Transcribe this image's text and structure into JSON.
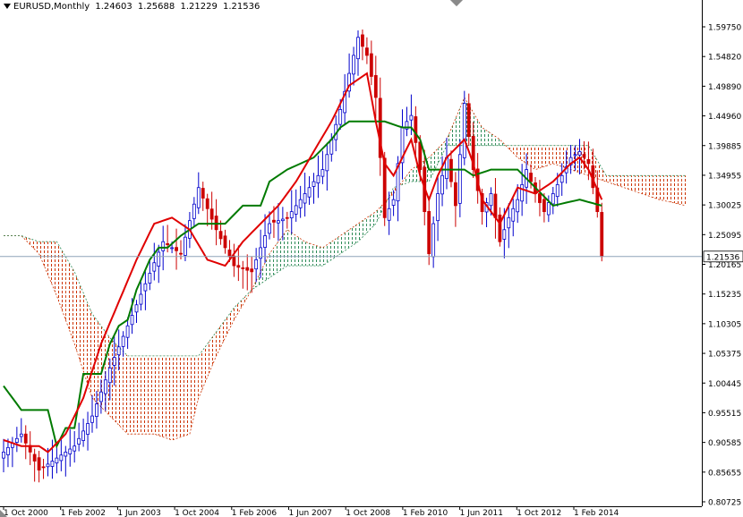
{
  "header": {
    "symbol": "EURUSD,Monthly",
    "open": "1.24603",
    "high": "1.25688",
    "low": "1.21229",
    "close": "1.21536"
  },
  "colors": {
    "bull_candle": "#0000cc",
    "bear_candle": "#cc0000",
    "tenkan": "#e00000",
    "kijun": "#007a00",
    "cloud_bull": "#2e8b57",
    "cloud_bear": "#cc3300",
    "price_line": "#8fa3b8",
    "axis": "#000000"
  },
  "chart_data": {
    "type": "candlestick",
    "indicator": "Ichimoku Kinko Hyo",
    "current_price": 1.21536,
    "current_price_label": "1.21536",
    "y_ticks": [
      "1.59750",
      "1.54820",
      "1.49890",
      "1.44960",
      "1.39885",
      "1.34955",
      "1.30025",
      "1.25095",
      "1.20165",
      "1.15235",
      "1.10305",
      "1.05375",
      "1.00445",
      "0.95515",
      "0.90585",
      "0.85655",
      "0.80725"
    ],
    "ylim": [
      0.80725,
      1.6143
    ],
    "x_ticks": [
      "1 Oct 2000",
      "1 Feb 2002",
      "1 Jun 2003",
      "1 Oct 2004",
      "1 Feb 2006",
      "1 Jun 2007",
      "1 Oct 2008",
      "1 Feb 2010",
      "1 Jun 2011",
      "1 Oct 2012",
      "1 Feb 2014"
    ],
    "price_anchors": [
      [
        0,
        0.89
      ],
      [
        4,
        0.92
      ],
      [
        8,
        0.86
      ],
      [
        12,
        0.88
      ],
      [
        16,
        0.9
      ],
      [
        20,
        0.95
      ],
      [
        24,
        1.03
      ],
      [
        28,
        1.1
      ],
      [
        32,
        1.17
      ],
      [
        36,
        1.24
      ],
      [
        40,
        1.22
      ],
      [
        44,
        1.33
      ],
      [
        48,
        1.26
      ],
      [
        52,
        1.2
      ],
      [
        56,
        1.19
      ],
      [
        60,
        1.27
      ],
      [
        64,
        1.28
      ],
      [
        68,
        1.32
      ],
      [
        72,
        1.36
      ],
      [
        76,
        1.46
      ],
      [
        80,
        1.58
      ],
      [
        82,
        1.55
      ],
      [
        84,
        1.48
      ],
      [
        86,
        1.28
      ],
      [
        88,
        1.31
      ],
      [
        90,
        1.43
      ],
      [
        92,
        1.45
      ],
      [
        94,
        1.36
      ],
      [
        96,
        1.22
      ],
      [
        98,
        1.32
      ],
      [
        100,
        1.38
      ],
      [
        102,
        1.3
      ],
      [
        104,
        1.47
      ],
      [
        106,
        1.36
      ],
      [
        108,
        1.29
      ],
      [
        110,
        1.32
      ],
      [
        112,
        1.24
      ],
      [
        114,
        1.28
      ],
      [
        116,
        1.31
      ],
      [
        118,
        1.36
      ],
      [
        120,
        1.32
      ],
      [
        122,
        1.29
      ],
      [
        124,
        1.32
      ],
      [
        126,
        1.35
      ],
      [
        128,
        1.38
      ],
      [
        130,
        1.39
      ],
      [
        132,
        1.37
      ],
      [
        134,
        1.29
      ],
      [
        135,
        1.21536
      ]
    ],
    "tenkan_anchors": [
      [
        0,
        0.91
      ],
      [
        4,
        0.9
      ],
      [
        8,
        0.9
      ],
      [
        10,
        0.89
      ],
      [
        14,
        0.92
      ],
      [
        18,
        0.98
      ],
      [
        22,
        1.07
      ],
      [
        26,
        1.14
      ],
      [
        30,
        1.21
      ],
      [
        34,
        1.27
      ],
      [
        38,
        1.28
      ],
      [
        42,
        1.26
      ],
      [
        46,
        1.21
      ],
      [
        50,
        1.2
      ],
      [
        54,
        1.24
      ],
      [
        58,
        1.27
      ],
      [
        62,
        1.3
      ],
      [
        66,
        1.34
      ],
      [
        70,
        1.39
      ],
      [
        74,
        1.44
      ],
      [
        78,
        1.5
      ],
      [
        82,
        1.52
      ],
      [
        84,
        1.44
      ],
      [
        86,
        1.37
      ],
      [
        88,
        1.35
      ],
      [
        90,
        1.38
      ],
      [
        92,
        1.41
      ],
      [
        94,
        1.35
      ],
      [
        96,
        1.31
      ],
      [
        98,
        1.35
      ],
      [
        100,
        1.38
      ],
      [
        104,
        1.41
      ],
      [
        106,
        1.37
      ],
      [
        108,
        1.31
      ],
      [
        112,
        1.27
      ],
      [
        116,
        1.33
      ],
      [
        120,
        1.32
      ],
      [
        124,
        1.34
      ],
      [
        128,
        1.37
      ],
      [
        130,
        1.38
      ],
      [
        132,
        1.36
      ],
      [
        135,
        1.31
      ]
    ],
    "kijun_anchors": [
      [
        0,
        1.0
      ],
      [
        4,
        0.96
      ],
      [
        10,
        0.96
      ],
      [
        12,
        0.9
      ],
      [
        14,
        0.93
      ],
      [
        16,
        0.93
      ],
      [
        18,
        1.02
      ],
      [
        22,
        1.02
      ],
      [
        24,
        1.07
      ],
      [
        26,
        1.1
      ],
      [
        28,
        1.11
      ],
      [
        30,
        1.16
      ],
      [
        33,
        1.21
      ],
      [
        35,
        1.23
      ],
      [
        37,
        1.23
      ],
      [
        40,
        1.25
      ],
      [
        44,
        1.27
      ],
      [
        50,
        1.27
      ],
      [
        54,
        1.3
      ],
      [
        58,
        1.3
      ],
      [
        60,
        1.34
      ],
      [
        64,
        1.36
      ],
      [
        70,
        1.38
      ],
      [
        74,
        1.41
      ],
      [
        76,
        1.43
      ],
      [
        78,
        1.44
      ],
      [
        86,
        1.44
      ],
      [
        90,
        1.43
      ],
      [
        92,
        1.43
      ],
      [
        94,
        1.41
      ],
      [
        96,
        1.36
      ],
      [
        104,
        1.36
      ],
      [
        106,
        1.35
      ],
      [
        110,
        1.36
      ],
      [
        116,
        1.36
      ],
      [
        120,
        1.33
      ],
      [
        124,
        1.3
      ],
      [
        130,
        1.31
      ],
      [
        135,
        1.3
      ]
    ],
    "span_a_anchors": [
      [
        0,
        1.25
      ],
      [
        4,
        1.25
      ],
      [
        8,
        1.22
      ],
      [
        12,
        1.15
      ],
      [
        16,
        1.07
      ],
      [
        20,
        0.98
      ],
      [
        24,
        0.95
      ],
      [
        28,
        0.92
      ],
      [
        30,
        0.92
      ],
      [
        34,
        0.92
      ],
      [
        38,
        0.91
      ],
      [
        42,
        0.92
      ],
      [
        44,
        0.98
      ],
      [
        48,
        1.05
      ],
      [
        52,
        1.11
      ],
      [
        56,
        1.16
      ],
      [
        60,
        1.22
      ],
      [
        64,
        1.26
      ],
      [
        68,
        1.24
      ],
      [
        72,
        1.23
      ],
      [
        76,
        1.25
      ],
      [
        80,
        1.27
      ],
      [
        84,
        1.29
      ],
      [
        88,
        1.32
      ],
      [
        92,
        1.36
      ],
      [
        96,
        1.38
      ],
      [
        100,
        1.41
      ],
      [
        104,
        1.48
      ],
      [
        108,
        1.43
      ],
      [
        112,
        1.41
      ],
      [
        116,
        1.38
      ],
      [
        120,
        1.36
      ],
      [
        124,
        1.37
      ],
      [
        128,
        1.36
      ],
      [
        132,
        1.35
      ],
      [
        136,
        1.34
      ],
      [
        140,
        1.33
      ],
      [
        144,
        1.32
      ],
      [
        148,
        1.31
      ],
      [
        154,
        1.3
      ]
    ],
    "span_b_anchors": [
      [
        0,
        1.25
      ],
      [
        4,
        1.25
      ],
      [
        8,
        1.24
      ],
      [
        12,
        1.24
      ],
      [
        16,
        1.19
      ],
      [
        20,
        1.12
      ],
      [
        24,
        1.08
      ],
      [
        28,
        1.05
      ],
      [
        30,
        1.05
      ],
      [
        34,
        1.05
      ],
      [
        38,
        1.05
      ],
      [
        42,
        1.05
      ],
      [
        44,
        1.05
      ],
      [
        48,
        1.09
      ],
      [
        52,
        1.13
      ],
      [
        56,
        1.16
      ],
      [
        60,
        1.18
      ],
      [
        64,
        1.2
      ],
      [
        68,
        1.2
      ],
      [
        72,
        1.2
      ],
      [
        76,
        1.22
      ],
      [
        80,
        1.24
      ],
      [
        84,
        1.27
      ],
      [
        88,
        1.33
      ],
      [
        92,
        1.34
      ],
      [
        96,
        1.34
      ],
      [
        100,
        1.4
      ],
      [
        104,
        1.4
      ],
      [
        108,
        1.4
      ],
      [
        112,
        1.4
      ],
      [
        116,
        1.4
      ],
      [
        120,
        1.4
      ],
      [
        124,
        1.4
      ],
      [
        128,
        1.4
      ],
      [
        132,
        1.4
      ],
      [
        136,
        1.35
      ],
      [
        140,
        1.35
      ],
      [
        144,
        1.35
      ],
      [
        148,
        1.35
      ],
      [
        154,
        1.35
      ]
    ]
  }
}
